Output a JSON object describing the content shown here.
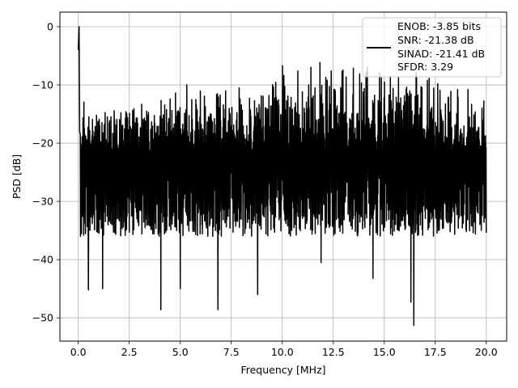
{
  "chart_data": {
    "type": "line",
    "title": "",
    "xlabel": "Frequency [MHz]",
    "ylabel": "PSD [dB]",
    "xlim": [
      -0.9,
      21.0
    ],
    "ylim": [
      -54,
      2.5
    ],
    "x_ticks": [
      0.0,
      2.5,
      5.0,
      7.5,
      10.0,
      12.5,
      15.0,
      17.5,
      20.0
    ],
    "x_tick_labels": [
      "0.0",
      "2.5",
      "5.0",
      "7.5",
      "10.0",
      "12.5",
      "15.0",
      "17.5",
      "20.0"
    ],
    "y_ticks": [
      0,
      -10,
      -20,
      -30,
      -40,
      -50
    ],
    "y_tick_labels": [
      "0",
      "−10",
      "−20",
      "−30",
      "−40",
      "−50"
    ],
    "grid": true,
    "legend_placement": "top-right",
    "legend": [
      "ENOB: -3.85 bits",
      "SNR: -21.38 dB",
      "SINAD: -21.41 dB",
      "SFDR: 3.29"
    ],
    "series": [
      {
        "color": "#000000",
        "x_start": 0.0,
        "x_end": 20.0,
        "peak": {
          "x": 0.04,
          "y": 0.0
        },
        "upper_envelope": [
          [
            0.1,
            -9.5
          ],
          [
            0.5,
            -14.5
          ],
          [
            1.0,
            -13.5
          ],
          [
            2.0,
            -12.5
          ],
          [
            3.0,
            -12.0
          ],
          [
            4.0,
            -11.0
          ],
          [
            5.0,
            -9.5
          ],
          [
            6.0,
            -9.0
          ],
          [
            7.0,
            -9.0
          ],
          [
            8.0,
            -7.5
          ],
          [
            9.0,
            -6.5
          ],
          [
            10.0,
            -6.0
          ],
          [
            11.0,
            -5.5
          ],
          [
            12.0,
            -5.5
          ],
          [
            13.0,
            -5.5
          ],
          [
            14.0,
            -6.0
          ],
          [
            15.0,
            -6.0
          ],
          [
            16.0,
            -6.0
          ],
          [
            17.0,
            -5.5
          ],
          [
            18.0,
            -6.5
          ],
          [
            19.0,
            -9.0
          ],
          [
            20.0,
            -12.0
          ]
        ],
        "median_level": -21.0,
        "lower_envelope_typical": -36.0,
        "notable_minima": [
          [
            0.5,
            -45.2
          ],
          [
            1.2,
            -45.0
          ],
          [
            4.05,
            -48.6
          ],
          [
            6.85,
            -48.6
          ],
          [
            16.45,
            -51.3
          ],
          [
            16.3,
            -47.3
          ],
          [
            14.45,
            -43.2
          ],
          [
            11.9,
            -40.5
          ],
          [
            8.8,
            -46.0
          ],
          [
            5.0,
            -45.0
          ]
        ]
      }
    ]
  }
}
